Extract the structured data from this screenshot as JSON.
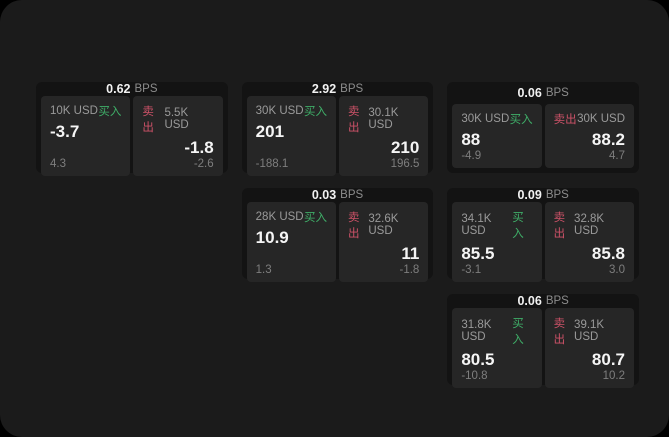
{
  "labels": {
    "buy": "买入",
    "sell": "卖出",
    "bps": "BPS"
  },
  "colors": {
    "background": "#000000",
    "window_bg": "#1b1b1b",
    "card_bg": "#131313",
    "panel_bg": "#262626",
    "buy_green": "#3fae68",
    "sell_red": "#cd5268",
    "muted_text": "#8d8d8d",
    "value_text": "#f5f5f5"
  },
  "cards": [
    {
      "bps": "0.62",
      "buy": {
        "size": "10K USD",
        "value": "-3.7",
        "sub": "4.3"
      },
      "sell": {
        "size": "5.5K USD",
        "value": "-1.8",
        "sub": "-2.6"
      }
    },
    {
      "bps": "2.92",
      "buy": {
        "size": "30K USD",
        "value": "201",
        "sub": "-188.1"
      },
      "sell": {
        "size": "30.1K USD",
        "value": "210",
        "sub": "196.5"
      }
    },
    {
      "bps": "0.06",
      "buy": {
        "size": "30K USD",
        "value": "88",
        "sub": "-4.9"
      },
      "sell": {
        "size": "30K USD",
        "value": "88.2",
        "sub": "4.7"
      }
    },
    {
      "bps": "0.03",
      "buy": {
        "size": "28K USD",
        "value": "10.9",
        "sub": "1.3"
      },
      "sell": {
        "size": "32.6K USD",
        "value": "11",
        "sub": "-1.8"
      }
    },
    {
      "bps": "0.09",
      "buy": {
        "size": "34.1K USD",
        "value": "85.5",
        "sub": "-3.1"
      },
      "sell": {
        "size": "32.8K USD",
        "value": "85.8",
        "sub": "3.0"
      }
    },
    {
      "bps": "0.06",
      "buy": {
        "size": "31.8K USD",
        "value": "80.5",
        "sub": "-10.8"
      },
      "sell": {
        "size": "39.1K USD",
        "value": "80.7",
        "sub": "10.2"
      }
    }
  ]
}
